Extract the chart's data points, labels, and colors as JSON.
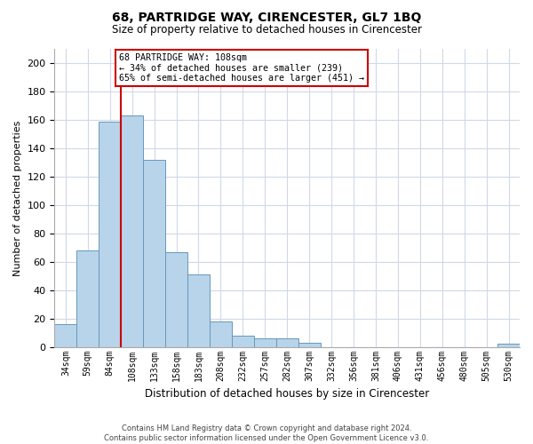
{
  "title": "68, PARTRIDGE WAY, CIRENCESTER, GL7 1BQ",
  "subtitle": "Size of property relative to detached houses in Cirencester",
  "xlabel": "Distribution of detached houses by size in Cirencester",
  "ylabel": "Number of detached properties",
  "bar_color": "#b8d4ea",
  "bar_edge_color": "#6699bb",
  "vline_color": "#cc0000",
  "vline_x_index": 3,
  "bin_labels": [
    "34sqm",
    "59sqm",
    "84sqm",
    "108sqm",
    "133sqm",
    "158sqm",
    "183sqm",
    "208sqm",
    "232sqm",
    "257sqm",
    "282sqm",
    "307sqm",
    "332sqm",
    "356sqm",
    "381sqm",
    "406sqm",
    "431sqm",
    "456sqm",
    "480sqm",
    "505sqm",
    "530sqm"
  ],
  "bar_heights": [
    16,
    68,
    159,
    163,
    132,
    67,
    51,
    18,
    8,
    6,
    6,
    3,
    0,
    0,
    0,
    0,
    0,
    0,
    0,
    0,
    2
  ],
  "ylim": [
    0,
    210
  ],
  "yticks": [
    0,
    20,
    40,
    60,
    80,
    100,
    120,
    140,
    160,
    180,
    200
  ],
  "annotation_title": "68 PARTRIDGE WAY: 108sqm",
  "annotation_line1": "← 34% of detached houses are smaller (239)",
  "annotation_line2": "65% of semi-detached houses are larger (451) →",
  "annotation_box_color": "#ffffff",
  "annotation_box_edge": "#cc0000",
  "footer_line1": "Contains HM Land Registry data © Crown copyright and database right 2024.",
  "footer_line2": "Contains public sector information licensed under the Open Government Licence v3.0.",
  "background_color": "#ffffff",
  "grid_color": "#d0d8e8"
}
